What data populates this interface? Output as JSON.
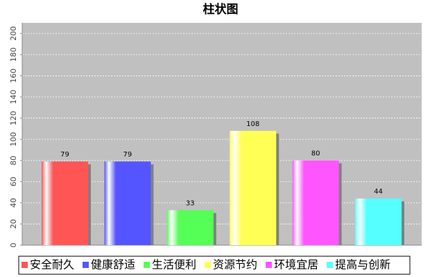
{
  "chart_data": {
    "type": "bar",
    "title": "柱状图",
    "categories": [
      "安全耐久",
      "健康舒适",
      "生活便利",
      "资源节约",
      "环境宜居",
      "提高与创新"
    ],
    "values": [
      79,
      79,
      33,
      108,
      80,
      44
    ],
    "colors": [
      "#ff5555",
      "#5555ff",
      "#55ff55",
      "#ffff55",
      "#ff55ff",
      "#55ffff"
    ],
    "ylim": [
      0,
      210
    ],
    "yticks": [
      0,
      20,
      40,
      60,
      80,
      100,
      120,
      140,
      160,
      180,
      200
    ],
    "grid": true,
    "legend": "bottom"
  }
}
